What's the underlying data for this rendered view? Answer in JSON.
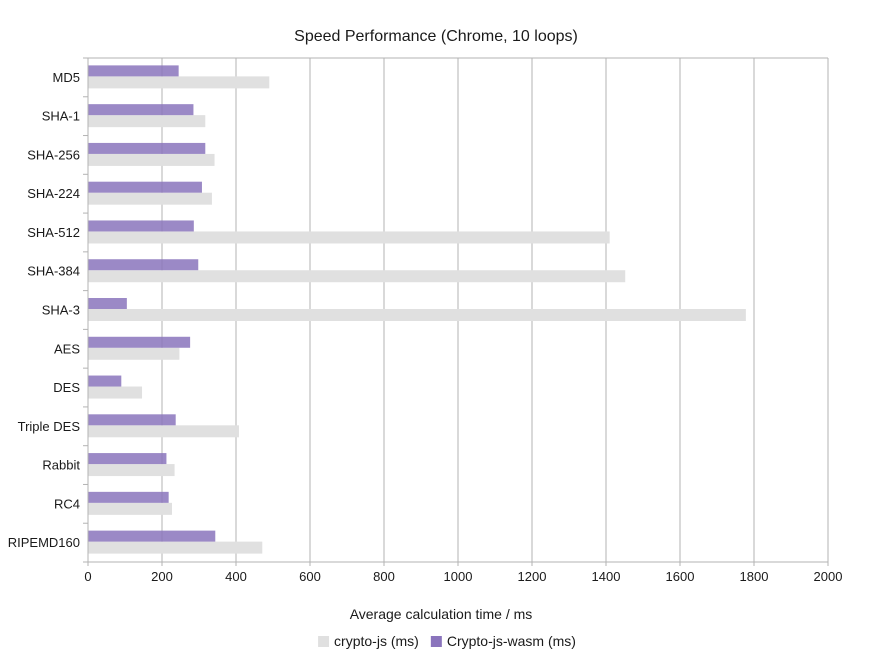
{
  "chart_data": {
    "type": "bar",
    "orientation": "horizontal",
    "title": "Speed Performance (Chrome, 10 loops)",
    "xlabel": "Average calculation time / ms",
    "ylabel": "",
    "xlim": [
      0,
      2000
    ],
    "xtick_step": 200,
    "xtick_labels": [
      "0",
      "200",
      "400",
      "600",
      "800",
      "1000",
      "1200",
      "1400",
      "1600",
      "1800",
      "2000"
    ],
    "grid": true,
    "legend_position": "bottom",
    "categories": [
      "MD5",
      "SHA-1",
      "SHA-256",
      "SHA-224",
      "SHA-512",
      "SHA-384",
      "SHA-3",
      "AES",
      "DES",
      "Triple DES",
      "Rabbit",
      "RC4",
      "RIPEMD160"
    ],
    "series": [
      {
        "name": "crypto-js (ms)",
        "color": "#e0e0e0",
        "opacity": 1,
        "values": [
          490,
          317,
          342,
          335,
          1410,
          1452,
          1778,
          247,
          146,
          408,
          234,
          227,
          471
        ]
      },
      {
        "name": "Crypto-js-wasm (ms)",
        "color": "#8a74bc",
        "opacity": 0.85,
        "values": [
          245,
          285,
          317,
          308,
          286,
          298,
          105,
          276,
          90,
          237,
          212,
          218,
          344
        ]
      }
    ],
    "colors": {
      "axis": "#b3b3b3",
      "grid": "#b3b3b3",
      "text": "#1a1a1a",
      "background": "#ffffff"
    }
  }
}
